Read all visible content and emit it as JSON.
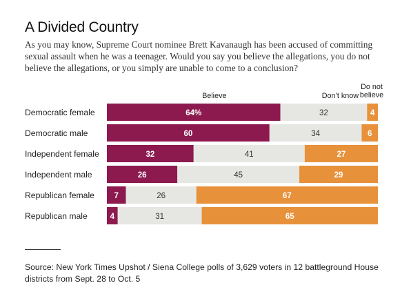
{
  "title": "A Divided Country",
  "subtitle": "As you may know, Supreme Court nominee Brett Kavanaugh has been accused of committing sexual assault when he was a teenager. Would you say you believe the allegations, you do not believe the allegations, or you simply are unable to come to a conclusion?",
  "source": "Source: New York Times Upshot / Siena College polls of 3,629 voters in 12 battleground House districts from Sept. 28 to Oct. 5",
  "colors": {
    "believe": "#8c1a4f",
    "dont_know": "#e6e6e2",
    "do_not_believe": "#e8913b"
  },
  "chart_data": {
    "type": "bar",
    "orientation": "horizontal",
    "stacked": true,
    "categories": [
      "Democratic female",
      "Democratic male",
      "Independent female",
      "Independent male",
      "Republican female",
      "Republican male"
    ],
    "series": [
      {
        "name": "Believe",
        "values": [
          64,
          60,
          32,
          26,
          7,
          4
        ],
        "labels": [
          "64%",
          "60",
          "32",
          "26",
          "7",
          "4"
        ]
      },
      {
        "name": "Don’t know",
        "values": [
          32,
          34,
          41,
          45,
          26,
          31
        ],
        "labels": [
          "32",
          "34",
          "41",
          "45",
          "26",
          "31"
        ]
      },
      {
        "name": "Do not believe",
        "values": [
          4,
          6,
          27,
          29,
          67,
          65
        ],
        "labels": [
          "4",
          "6",
          "27",
          "29",
          "67",
          "65"
        ]
      }
    ],
    "xlim": [
      0,
      100
    ]
  }
}
